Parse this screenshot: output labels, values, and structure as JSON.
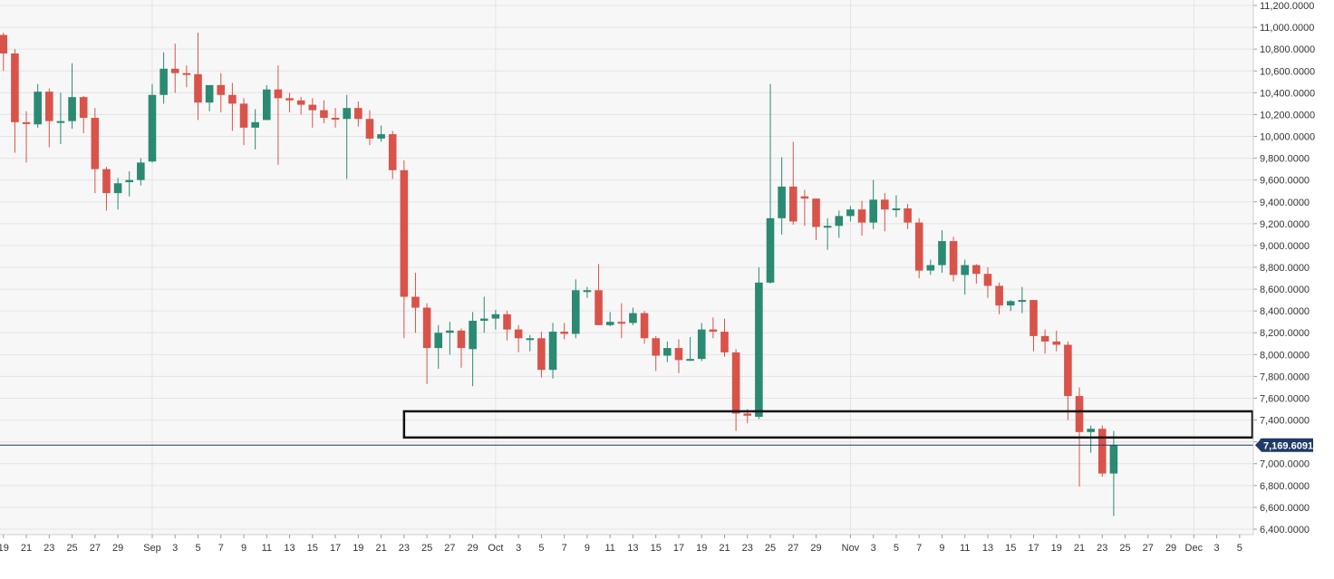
{
  "chart_data": {
    "type": "candlestick",
    "y_ticks": [
      6400,
      6600,
      6800,
      7000,
      7200,
      7400,
      7600,
      7800,
      8000,
      8200,
      8400,
      8600,
      8800,
      9000,
      9200,
      9400,
      9600,
      9800,
      10000,
      10200,
      10400,
      10600,
      10800,
      11000,
      11200
    ],
    "y_tick_labels": [
      "6,400.0000",
      "6,600.0000",
      "6,800.0000",
      "7,000.0000",
      "7,200.0000",
      "7,400.0000",
      "7,600.0000",
      "7,800.0000",
      "8,000.0000",
      "8,200.0000",
      "8,400.0000",
      "8,600.0000",
      "8,800.0000",
      "9,000.0000",
      "9,200.0000",
      "9,400.0000",
      "9,600.0000",
      "9,800.0000",
      "10,000.0000",
      "10,200.0000",
      "10,400.0000",
      "10,600.0000",
      "10,800.0000",
      "11,000.0000",
      "11,200.0000"
    ],
    "ylim": [
      6350,
      11250
    ],
    "start_date": "2019-08-19",
    "xlim_days": [
      -0.3,
      109.2
    ],
    "x_tick_labels": [
      {
        "day": 0,
        "label": "19"
      },
      {
        "day": 2,
        "label": "21"
      },
      {
        "day": 4,
        "label": "23"
      },
      {
        "day": 6,
        "label": "25"
      },
      {
        "day": 8,
        "label": "27"
      },
      {
        "day": 10,
        "label": "29"
      },
      {
        "day": 13,
        "label": "Sep"
      },
      {
        "day": 15,
        "label": "3"
      },
      {
        "day": 17,
        "label": "5"
      },
      {
        "day": 19,
        "label": "7"
      },
      {
        "day": 21,
        "label": "9"
      },
      {
        "day": 23,
        "label": "11"
      },
      {
        "day": 25,
        "label": "13"
      },
      {
        "day": 27,
        "label": "15"
      },
      {
        "day": 29,
        "label": "17"
      },
      {
        "day": 31,
        "label": "19"
      },
      {
        "day": 33,
        "label": "21"
      },
      {
        "day": 35,
        "label": "23"
      },
      {
        "day": 37,
        "label": "25"
      },
      {
        "day": 39,
        "label": "27"
      },
      {
        "day": 41,
        "label": "29"
      },
      {
        "day": 43,
        "label": "Oct"
      },
      {
        "day": 45,
        "label": "3"
      },
      {
        "day": 47,
        "label": "5"
      },
      {
        "day": 49,
        "label": "7"
      },
      {
        "day": 51,
        "label": "9"
      },
      {
        "day": 53,
        "label": "11"
      },
      {
        "day": 55,
        "label": "13"
      },
      {
        "day": 57,
        "label": "15"
      },
      {
        "day": 59,
        "label": "17"
      },
      {
        "day": 61,
        "label": "19"
      },
      {
        "day": 63,
        "label": "21"
      },
      {
        "day": 65,
        "label": "23"
      },
      {
        "day": 67,
        "label": "25"
      },
      {
        "day": 69,
        "label": "27"
      },
      {
        "day": 71,
        "label": "29"
      },
      {
        "day": 74,
        "label": "Nov"
      },
      {
        "day": 76,
        "label": "3"
      },
      {
        "day": 78,
        "label": "5"
      },
      {
        "day": 80,
        "label": "7"
      },
      {
        "day": 82,
        "label": "9"
      },
      {
        "day": 84,
        "label": "11"
      },
      {
        "day": 86,
        "label": "13"
      },
      {
        "day": 88,
        "label": "15"
      },
      {
        "day": 90,
        "label": "17"
      },
      {
        "day": 92,
        "label": "19"
      },
      {
        "day": 94,
        "label": "21"
      },
      {
        "day": 96,
        "label": "23"
      },
      {
        "day": 98,
        "label": "25"
      },
      {
        "day": 100,
        "label": "27"
      },
      {
        "day": 102,
        "label": "29"
      },
      {
        "day": 104,
        "label": "Dec"
      },
      {
        "day": 106,
        "label": "3"
      },
      {
        "day": 108,
        "label": "5"
      }
    ],
    "vertical_gridlines_days": [
      13,
      43,
      74,
      104
    ],
    "candles": [
      {
        "day": 0,
        "open": 10930,
        "high": 10950,
        "low": 10600,
        "close": 10760
      },
      {
        "day": 1,
        "open": 10760,
        "high": 10800,
        "low": 9850,
        "close": 10130
      },
      {
        "day": 2,
        "open": 10130,
        "high": 10230,
        "low": 9760,
        "close": 10120
      },
      {
        "day": 3,
        "open": 10110,
        "high": 10480,
        "low": 10080,
        "close": 10410
      },
      {
        "day": 4,
        "open": 10410,
        "high": 10440,
        "low": 9900,
        "close": 10140
      },
      {
        "day": 5,
        "open": 10140,
        "high": 10400,
        "low": 9930,
        "close": 10140
      },
      {
        "day": 6,
        "open": 10140,
        "high": 10670,
        "low": 10070,
        "close": 10360
      },
      {
        "day": 7,
        "open": 10360,
        "high": 10370,
        "low": 10030,
        "close": 10170
      },
      {
        "day": 8,
        "open": 10170,
        "high": 10260,
        "low": 9480,
        "close": 9700
      },
      {
        "day": 9,
        "open": 9700,
        "high": 9720,
        "low": 9320,
        "close": 9480
      },
      {
        "day": 10,
        "open": 9480,
        "high": 9620,
        "low": 9330,
        "close": 9570
      },
      {
        "day": 11,
        "open": 9580,
        "high": 9680,
        "low": 9450,
        "close": 9600
      },
      {
        "day": 12,
        "open": 9600,
        "high": 9800,
        "low": 9550,
        "close": 9760
      },
      {
        "day": 13,
        "open": 9770,
        "high": 10480,
        "low": 9760,
        "close": 10380
      },
      {
        "day": 14,
        "open": 10380,
        "high": 10770,
        "low": 10300,
        "close": 10620
      },
      {
        "day": 15,
        "open": 10620,
        "high": 10850,
        "low": 10400,
        "close": 10580
      },
      {
        "day": 16,
        "open": 10580,
        "high": 10650,
        "low": 10450,
        "close": 10570
      },
      {
        "day": 17,
        "open": 10570,
        "high": 10950,
        "low": 10150,
        "close": 10310
      },
      {
        "day": 18,
        "open": 10310,
        "high": 10470,
        "low": 10230,
        "close": 10470
      },
      {
        "day": 19,
        "open": 10470,
        "high": 10580,
        "low": 10220,
        "close": 10380
      },
      {
        "day": 20,
        "open": 10380,
        "high": 10490,
        "low": 10050,
        "close": 10300
      },
      {
        "day": 21,
        "open": 10300,
        "high": 10350,
        "low": 9920,
        "close": 10080
      },
      {
        "day": 22,
        "open": 10080,
        "high": 10250,
        "low": 9880,
        "close": 10130
      },
      {
        "day": 23,
        "open": 10150,
        "high": 10470,
        "low": 10150,
        "close": 10430
      },
      {
        "day": 24,
        "open": 10430,
        "high": 10650,
        "low": 9740,
        "close": 10350
      },
      {
        "day": 25,
        "open": 10350,
        "high": 10400,
        "low": 10220,
        "close": 10330
      },
      {
        "day": 26,
        "open": 10330,
        "high": 10360,
        "low": 10200,
        "close": 10290
      },
      {
        "day": 27,
        "open": 10290,
        "high": 10350,
        "low": 10080,
        "close": 10240
      },
      {
        "day": 28,
        "open": 10240,
        "high": 10330,
        "low": 10120,
        "close": 10170
      },
      {
        "day": 29,
        "open": 10170,
        "high": 10260,
        "low": 10080,
        "close": 10160
      },
      {
        "day": 30,
        "open": 10160,
        "high": 10380,
        "low": 9610,
        "close": 10260
      },
      {
        "day": 31,
        "open": 10260,
        "high": 10320,
        "low": 10090,
        "close": 10160
      },
      {
        "day": 32,
        "open": 10160,
        "high": 10240,
        "low": 9920,
        "close": 9980
      },
      {
        "day": 33,
        "open": 9980,
        "high": 10100,
        "low": 9950,
        "close": 10020
      },
      {
        "day": 34,
        "open": 10020,
        "high": 10050,
        "low": 9610,
        "close": 9690
      },
      {
        "day": 35,
        "open": 9690,
        "high": 9780,
        "low": 8150,
        "close": 8530
      },
      {
        "day": 36,
        "open": 8530,
        "high": 8750,
        "low": 8200,
        "close": 8430
      },
      {
        "day": 37,
        "open": 8430,
        "high": 8470,
        "low": 7730,
        "close": 8060
      },
      {
        "day": 38,
        "open": 8060,
        "high": 8270,
        "low": 7870,
        "close": 8200
      },
      {
        "day": 39,
        "open": 8200,
        "high": 8300,
        "low": 8000,
        "close": 8220
      },
      {
        "day": 40,
        "open": 8220,
        "high": 8240,
        "low": 7880,
        "close": 8060
      },
      {
        "day": 41,
        "open": 8050,
        "high": 8390,
        "low": 7710,
        "close": 8310
      },
      {
        "day": 42,
        "open": 8310,
        "high": 8530,
        "low": 8200,
        "close": 8330
      },
      {
        "day": 43,
        "open": 8330,
        "high": 8410,
        "low": 8230,
        "close": 8370
      },
      {
        "day": 44,
        "open": 8370,
        "high": 8400,
        "low": 8130,
        "close": 8230
      },
      {
        "day": 45,
        "open": 8230,
        "high": 8270,
        "low": 8020,
        "close": 8150
      },
      {
        "day": 46,
        "open": 8150,
        "high": 8180,
        "low": 8030,
        "close": 8150
      },
      {
        "day": 47,
        "open": 8150,
        "high": 8210,
        "low": 7790,
        "close": 7860
      },
      {
        "day": 48,
        "open": 7860,
        "high": 8290,
        "low": 7780,
        "close": 8210
      },
      {
        "day": 49,
        "open": 8210,
        "high": 8290,
        "low": 8140,
        "close": 8190
      },
      {
        "day": 50,
        "open": 8190,
        "high": 8690,
        "low": 8150,
        "close": 8590
      },
      {
        "day": 51,
        "open": 8590,
        "high": 8620,
        "low": 8520,
        "close": 8590
      },
      {
        "day": 52,
        "open": 8590,
        "high": 8830,
        "low": 8270,
        "close": 8270
      },
      {
        "day": 53,
        "open": 8270,
        "high": 8390,
        "low": 8260,
        "close": 8300
      },
      {
        "day": 54,
        "open": 8300,
        "high": 8470,
        "low": 8150,
        "close": 8290
      },
      {
        "day": 55,
        "open": 8290,
        "high": 8430,
        "low": 8270,
        "close": 8380
      },
      {
        "day": 56,
        "open": 8380,
        "high": 8400,
        "low": 8100,
        "close": 8150
      },
      {
        "day": 57,
        "open": 8150,
        "high": 8170,
        "low": 7850,
        "close": 7990
      },
      {
        "day": 58,
        "open": 7990,
        "high": 8120,
        "low": 7930,
        "close": 8060
      },
      {
        "day": 59,
        "open": 8060,
        "high": 8140,
        "low": 7830,
        "close": 7950
      },
      {
        "day": 60,
        "open": 7950,
        "high": 8160,
        "low": 7940,
        "close": 7960
      },
      {
        "day": 61,
        "open": 7960,
        "high": 8290,
        "low": 7940,
        "close": 8230
      },
      {
        "day": 62,
        "open": 8230,
        "high": 8340,
        "low": 8150,
        "close": 8210
      },
      {
        "day": 63,
        "open": 8210,
        "high": 8330,
        "low": 7980,
        "close": 8020
      },
      {
        "day": 64,
        "open": 8020,
        "high": 8050,
        "low": 7300,
        "close": 7460
      },
      {
        "day": 65,
        "open": 7460,
        "high": 7500,
        "low": 7370,
        "close": 7440
      },
      {
        "day": 66,
        "open": 7430,
        "high": 8800,
        "low": 7410,
        "close": 8660
      },
      {
        "day": 67,
        "open": 8660,
        "high": 10480,
        "low": 8650,
        "close": 9250
      },
      {
        "day": 68,
        "open": 9250,
        "high": 9810,
        "low": 9100,
        "close": 9540
      },
      {
        "day": 69,
        "open": 9540,
        "high": 9950,
        "low": 9190,
        "close": 9220
      },
      {
        "day": 70,
        "open": 9450,
        "high": 9510,
        "low": 9180,
        "close": 9430
      },
      {
        "day": 71,
        "open": 9430,
        "high": 9430,
        "low": 9050,
        "close": 9170
      },
      {
        "day": 72,
        "open": 9170,
        "high": 9250,
        "low": 8960,
        "close": 9180
      },
      {
        "day": 73,
        "open": 9180,
        "high": 9320,
        "low": 9070,
        "close": 9270
      },
      {
        "day": 74,
        "open": 9270,
        "high": 9360,
        "low": 9220,
        "close": 9330
      },
      {
        "day": 75,
        "open": 9330,
        "high": 9410,
        "low": 9090,
        "close": 9210
      },
      {
        "day": 76,
        "open": 9210,
        "high": 9600,
        "low": 9150,
        "close": 9420
      },
      {
        "day": 77,
        "open": 9420,
        "high": 9480,
        "low": 9130,
        "close": 9330
      },
      {
        "day": 78,
        "open": 9330,
        "high": 9460,
        "low": 9260,
        "close": 9340
      },
      {
        "day": 79,
        "open": 9340,
        "high": 9380,
        "low": 9150,
        "close": 9210
      },
      {
        "day": 80,
        "open": 9210,
        "high": 9250,
        "low": 8700,
        "close": 8770
      },
      {
        "day": 81,
        "open": 8770,
        "high": 8870,
        "low": 8730,
        "close": 8820
      },
      {
        "day": 82,
        "open": 8820,
        "high": 9140,
        "low": 8750,
        "close": 9040
      },
      {
        "day": 83,
        "open": 9040,
        "high": 9080,
        "low": 8670,
        "close": 8730
      },
      {
        "day": 84,
        "open": 8730,
        "high": 8870,
        "low": 8550,
        "close": 8820
      },
      {
        "day": 85,
        "open": 8820,
        "high": 8830,
        "low": 8650,
        "close": 8740
      },
      {
        "day": 86,
        "open": 8740,
        "high": 8800,
        "low": 8520,
        "close": 8630
      },
      {
        "day": 87,
        "open": 8630,
        "high": 8660,
        "low": 8370,
        "close": 8450
      },
      {
        "day": 88,
        "open": 8450,
        "high": 8500,
        "low": 8400,
        "close": 8490
      },
      {
        "day": 89,
        "open": 8490,
        "high": 8620,
        "low": 8380,
        "close": 8500
      },
      {
        "day": 90,
        "open": 8500,
        "high": 8500,
        "low": 8030,
        "close": 8170
      },
      {
        "day": 91,
        "open": 8170,
        "high": 8230,
        "low": 8010,
        "close": 8120
      },
      {
        "day": 92,
        "open": 8120,
        "high": 8220,
        "low": 8030,
        "close": 8090
      },
      {
        "day": 93,
        "open": 8090,
        "high": 8120,
        "low": 7400,
        "close": 7620
      },
      {
        "day": 94,
        "open": 7620,
        "high": 7700,
        "low": 6790,
        "close": 7290
      },
      {
        "day": 95,
        "open": 7290,
        "high": 7350,
        "low": 7100,
        "close": 7320
      },
      {
        "day": 96,
        "open": 7320,
        "high": 7350,
        "low": 6880,
        "close": 6910
      },
      {
        "day": 97,
        "open": 6910,
        "high": 7300,
        "low": 6520,
        "close": 7170
      }
    ],
    "highlight_box": {
      "day_start": 35,
      "day_end": 109.3,
      "price_low": 7240,
      "price_high": 7480
    },
    "current_price": 7169.6091,
    "current_price_label": "7,169.6091",
    "colors": {
      "up": "#2a8a72",
      "down": "#d9534a",
      "grid": "#e4e4e4",
      "plot_background": "#f7f7f7",
      "price_line": "#1f3a66",
      "price_label_bg": "#1f3a66",
      "box": "#111111"
    }
  }
}
